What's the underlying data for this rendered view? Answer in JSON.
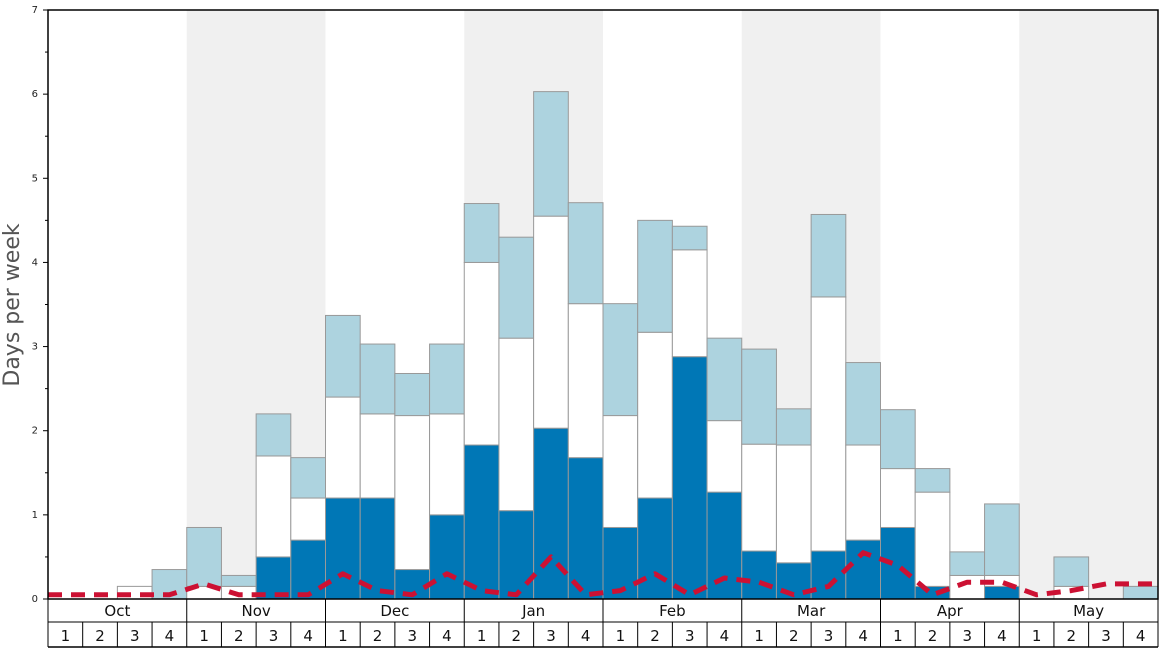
{
  "chart_data": {
    "type": "bar",
    "stacked": true,
    "title": "",
    "xlabel": "",
    "ylabel": "Days per week",
    "ylim": [
      0,
      7
    ],
    "y_ticks": [
      "0",
      "1",
      "2",
      "3",
      "4",
      "5",
      "6",
      "7"
    ],
    "months": [
      "Oct",
      "Nov",
      "Dec",
      "Jan",
      "Feb",
      "Mar",
      "Apr",
      "May"
    ],
    "weeks": [
      "1",
      "2",
      "3",
      "4"
    ],
    "shaded_months": [
      "Nov",
      "Jan",
      "Mar",
      "May"
    ],
    "grid": false,
    "legend": "none",
    "colors": {
      "series_dark": "#0077b6",
      "series_white": "#ffffff",
      "series_light": "#add3df",
      "line": "#cc1133",
      "shade": "#f0f0f0",
      "bar_stroke": "#999999"
    },
    "series": [
      {
        "values": [
          0,
          0,
          0,
          0,
          0,
          0,
          0.5,
          0.7,
          1.2,
          1.2,
          0.35,
          1.0,
          1.83,
          1.05,
          2.03,
          1.68,
          0.85,
          1.2,
          2.88,
          1.27,
          0.57,
          0.43,
          0.57,
          0.7,
          0.85,
          0.15,
          0,
          0.15,
          0,
          0,
          0,
          0
        ]
      },
      {
        "values": [
          0,
          0,
          0.15,
          0,
          0.15,
          0.15,
          1.2,
          0.5,
          1.2,
          1.0,
          1.83,
          1.2,
          2.17,
          2.05,
          2.52,
          1.83,
          1.33,
          1.97,
          1.27,
          0.85,
          1.27,
          1.4,
          3.02,
          1.13,
          0.7,
          1.12,
          0.28,
          0.13,
          0,
          0.15,
          0,
          0
        ]
      },
      {
        "values": [
          0,
          0,
          0,
          0.35,
          0.7,
          0.13,
          0.5,
          0.48,
          0.97,
          0.83,
          0.5,
          0.83,
          0.7,
          1.2,
          1.48,
          1.2,
          1.33,
          1.33,
          0.28,
          0.98,
          1.13,
          0.43,
          0.98,
          0.98,
          0.7,
          0.28,
          0.28,
          0.85,
          0,
          0.35,
          0,
          0.15
        ]
      }
    ],
    "line_values": [
      0.05,
      0.05,
      0.05,
      0.05,
      0.18,
      0.05,
      0.05,
      0.05,
      0.3,
      0.1,
      0.05,
      0.3,
      0.1,
      0.05,
      0.5,
      0.05,
      0.1,
      0.3,
      0.05,
      0.25,
      0.2,
      0.05,
      0.15,
      0.55,
      0.4,
      0.05,
      0.2,
      0.2,
      0.05,
      0.1,
      0.18,
      0.18
    ]
  }
}
